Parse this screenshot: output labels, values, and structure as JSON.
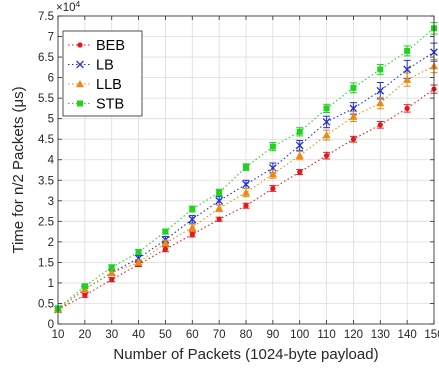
{
  "chart_data": {
    "type": "line",
    "xlabel": "Number of Packets (1024-byte payload)",
    "ylabel": "Time for n/2 Packets (μs)",
    "y_exponent_label": "×10",
    "y_exponent_power": "4",
    "x": [
      10,
      20,
      30,
      40,
      50,
      60,
      70,
      80,
      90,
      100,
      110,
      120,
      130,
      140,
      150
    ],
    "xlim": [
      10,
      150
    ],
    "ylim": [
      0,
      7.5
    ],
    "y_scale_note": "values in units of 10^4 μs",
    "xticks": [
      "10",
      "20",
      "30",
      "40",
      "50",
      "60",
      "70",
      "80",
      "90",
      "100",
      "110",
      "120",
      "130",
      "140",
      "150"
    ],
    "yticks": [
      "0",
      "0.5",
      "1",
      "1.5",
      "2",
      "2.5",
      "3",
      "3.5",
      "4",
      "4.5",
      "5",
      "5.5",
      "6",
      "6.5",
      "7",
      "7.5"
    ],
    "grid": true,
    "legend_position": "top-left",
    "series": [
      {
        "name": "BEB",
        "color": "#e8161b",
        "marker": "dot",
        "values": [
          0.35,
          0.7,
          1.08,
          1.45,
          1.82,
          2.18,
          2.55,
          2.88,
          3.3,
          3.7,
          4.1,
          4.5,
          4.85,
          5.25,
          5.72
        ],
        "err": [
          0.04,
          0.05,
          0.05,
          0.05,
          0.06,
          0.06,
          0.05,
          0.06,
          0.07,
          0.06,
          0.08,
          0.07,
          0.08,
          0.09,
          0.1
        ]
      },
      {
        "name": "LB",
        "color": "#1f2fd6",
        "marker": "x",
        "values": [
          0.35,
          0.85,
          1.25,
          1.6,
          2.05,
          2.55,
          3.0,
          3.4,
          3.8,
          4.35,
          4.92,
          5.25,
          5.68,
          6.2,
          6.62
        ],
        "err": [
          0.04,
          0.06,
          0.06,
          0.07,
          0.08,
          0.09,
          0.1,
          0.1,
          0.12,
          0.12,
          0.14,
          0.14,
          0.2,
          0.22,
          0.22
        ]
      },
      {
        "name": "LLB",
        "color": "#ea8a10",
        "marker": "triangle",
        "values": [
          0.35,
          0.85,
          1.25,
          1.5,
          1.97,
          2.35,
          2.82,
          3.2,
          3.65,
          4.1,
          4.6,
          5.05,
          5.38,
          5.95,
          6.28
        ],
        "err": [
          0.04,
          0.05,
          0.06,
          0.06,
          0.07,
          0.08,
          0.08,
          0.1,
          0.1,
          0.1,
          0.12,
          0.12,
          0.14,
          0.16,
          0.16
        ]
      },
      {
        "name": "STB",
        "color": "#1fd41f",
        "marker": "square",
        "values": [
          0.38,
          0.92,
          1.38,
          1.75,
          2.25,
          2.8,
          3.2,
          3.82,
          4.32,
          4.68,
          5.25,
          5.75,
          6.2,
          6.65,
          7.2
        ],
        "err": [
          0.04,
          0.05,
          0.06,
          0.06,
          0.06,
          0.07,
          0.08,
          0.08,
          0.1,
          0.1,
          0.1,
          0.12,
          0.12,
          0.12,
          0.14
        ]
      }
    ]
  }
}
